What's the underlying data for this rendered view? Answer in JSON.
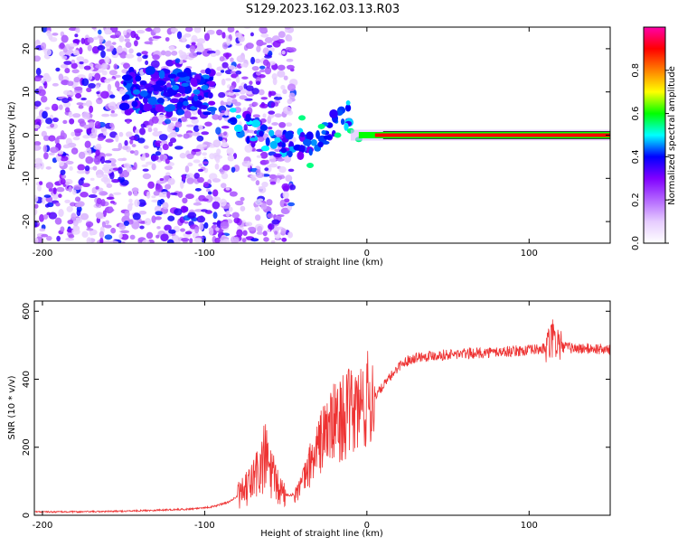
{
  "figure_title": "S129.2023.162.03.13.R03",
  "chart_data": [
    {
      "type": "heatmap",
      "title": "",
      "xlabel": "Height of straight line (km)",
      "ylabel": "Frequency (Hz)",
      "xlim": [
        -205,
        150
      ],
      "ylim": [
        -25,
        25
      ],
      "xticks": [
        -200,
        -100,
        0,
        100
      ],
      "yticks": [
        -20,
        -10,
        0,
        10,
        20
      ],
      "colorbar": {
        "label": "Normalized spectral amplitude",
        "range": [
          0,
          1
        ],
        "ticks": [
          "0.0",
          "0.2",
          "0.4",
          "0.6",
          "0.8"
        ],
        "colors": [
          "#ffffff",
          "#e6ccff",
          "#b366ff",
          "#8000ff",
          "#0000ff",
          "#00ffff",
          "#00ff00",
          "#ffff00",
          "#ff8000",
          "#ff0000",
          "#ff00aa"
        ]
      },
      "description_values": {
        "noise_region_x": [
          -205,
          -45
        ],
        "noise_amplitude": 0.25,
        "cluster_x_range": [
          -150,
          -95
        ],
        "cluster_frequency_hz": 10,
        "transition_x_range": [
          -45,
          10
        ],
        "transition_frequency_hz": [
          5,
          -7
        ],
        "steady_line_x_range": [
          10,
          150
        ],
        "steady_line_frequency_hz": 0,
        "steady_line_amplitude": 0.9
      }
    },
    {
      "type": "line",
      "title": "",
      "xlabel": "Height of straight line (km)",
      "ylabel": "SNR (10 * v/v)",
      "xlim": [
        -205,
        150
      ],
      "ylim": [
        0,
        630
      ],
      "xticks": [
        -200,
        -100,
        0,
        100
      ],
      "yticks": [
        0,
        200,
        400,
        600
      ],
      "color": "#ee3333",
      "series": [
        {
          "name": "SNR",
          "x": [
            -205,
            -180,
            -150,
            -130,
            -110,
            -95,
            -85,
            -75,
            -68,
            -62,
            -58,
            -55,
            -50,
            -45,
            -40,
            -35,
            -30,
            -25,
            -20,
            -15,
            -10,
            -5,
            0,
            5,
            10,
            15,
            20,
            25,
            30,
            40,
            60,
            80,
            100,
            110,
            115,
            120,
            130,
            140,
            150
          ],
          "y": [
            10,
            10,
            12,
            15,
            18,
            25,
            40,
            70,
            120,
            170,
            110,
            80,
            60,
            60,
            90,
            150,
            200,
            250,
            270,
            290,
            300,
            315,
            335,
            350,
            380,
            410,
            440,
            455,
            465,
            470,
            475,
            480,
            485,
            490,
            520,
            495,
            490,
            490,
            485
          ]
        }
      ]
    }
  ]
}
